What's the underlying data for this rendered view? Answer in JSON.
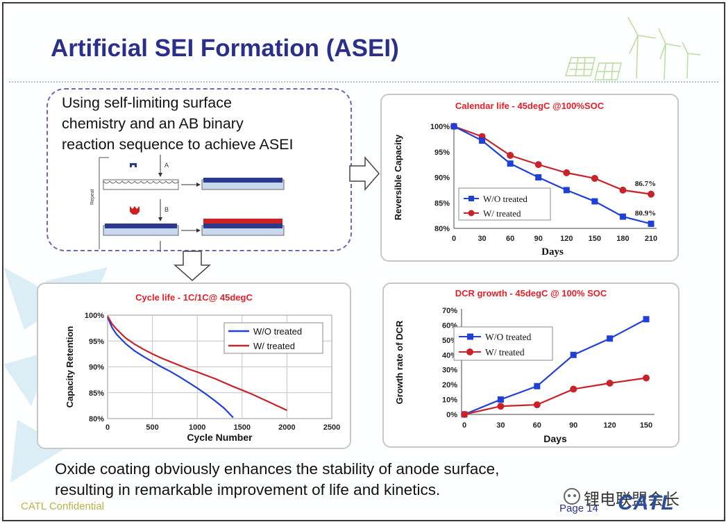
{
  "slide": {
    "title": "Artificial SEI Formation (ASEI)",
    "intro_lines": [
      "Using self-limiting surface",
      "chemistry and an AB binary",
      "reaction sequence to achieve ASEI"
    ],
    "diagram": {
      "step_a": "A",
      "step_b": "B",
      "repeat": "Repeat"
    },
    "conclusion_lines": [
      "Oxide coating obviously enhances the stability of anode surface,",
      "resulting in  remarkable improvement of life and kinetics."
    ],
    "footer": {
      "confidential": "CATL Confidential",
      "page": "Page 14",
      "watermark": "锂电联盟会长",
      "logo": "CATL"
    }
  },
  "colors": {
    "title": "#2b2f8c",
    "chart_title": "#e0202a",
    "series_wo": "#1f3fd6",
    "series_w": "#c8232a"
  },
  "chart_data": [
    {
      "type": "line",
      "title": "Calendar life - 45degC @100%SOC",
      "xlabel": "Days",
      "ylabel": "Reversible Capacity",
      "x": [
        0,
        30,
        60,
        90,
        120,
        150,
        180,
        210
      ],
      "ylim": [
        80,
        100
      ],
      "yticks": [
        "80%",
        "85%",
        "90%",
        "95%",
        "100%"
      ],
      "legend": "center-left",
      "annotations": [
        "86.7%",
        "80.9%"
      ],
      "series": [
        {
          "name": "W/O treated",
          "values": [
            100,
            97.2,
            92.7,
            90.0,
            87.5,
            85.3,
            82.3,
            80.9
          ]
        },
        {
          "name": "W/ treated",
          "values": [
            100,
            98.0,
            94.3,
            92.5,
            90.9,
            89.8,
            87.5,
            86.7
          ]
        }
      ]
    },
    {
      "type": "line",
      "title": "Cycle life - 1C/1C@ 45degC",
      "xlabel": "Cycle Number",
      "ylabel": "Capacity Retention",
      "xlim": [
        0,
        2500
      ],
      "xticks": [
        "0",
        "500",
        "1000",
        "1500",
        "2000",
        "2500"
      ],
      "ylim": [
        80,
        100
      ],
      "yticks": [
        "80%",
        "85%",
        "90%",
        "95%",
        "100%"
      ],
      "grid": true,
      "legend": "top-right",
      "series": [
        {
          "name": "W/O treated",
          "x": [
            0,
            50,
            100,
            200,
            300,
            400,
            500,
            600,
            700,
            800,
            900,
            1000,
            1100,
            1200,
            1300,
            1400
          ],
          "values": [
            99.6,
            97.6,
            96.3,
            94.5,
            93.1,
            92.0,
            91.0,
            90.0,
            89.1,
            88.1,
            87.0,
            85.9,
            84.7,
            83.4,
            82.0,
            80.2
          ]
        },
        {
          "name": "W/ treated",
          "x": [
            0,
            50,
            100,
            200,
            300,
            400,
            500,
            600,
            700,
            800,
            900,
            1000,
            1200,
            1400,
            1600,
            1800,
            2000
          ],
          "values": [
            99.8,
            98.3,
            97.3,
            95.6,
            94.4,
            93.4,
            92.5,
            91.7,
            91.0,
            90.3,
            89.6,
            89.0,
            87.7,
            86.2,
            84.8,
            83.2,
            81.6
          ]
        }
      ]
    },
    {
      "type": "line",
      "title": "DCR growth - 45degC @ 100% SOC",
      "xlabel": "Days",
      "ylabel": "Growth rate of DCR",
      "x": [
        0,
        30,
        60,
        90,
        120,
        150
      ],
      "ylim": [
        0,
        70
      ],
      "yticks": [
        "0%",
        "10%",
        "20%",
        "30%",
        "40%",
        "50%",
        "60%",
        "70%"
      ],
      "legend": "top-left",
      "series": [
        {
          "name": "W/O treated",
          "values": [
            0,
            10,
            19,
            40,
            51,
            64
          ]
        },
        {
          "name": "W/ treated",
          "values": [
            0,
            5.5,
            6.5,
            17,
            21,
            24.5
          ]
        }
      ]
    }
  ]
}
